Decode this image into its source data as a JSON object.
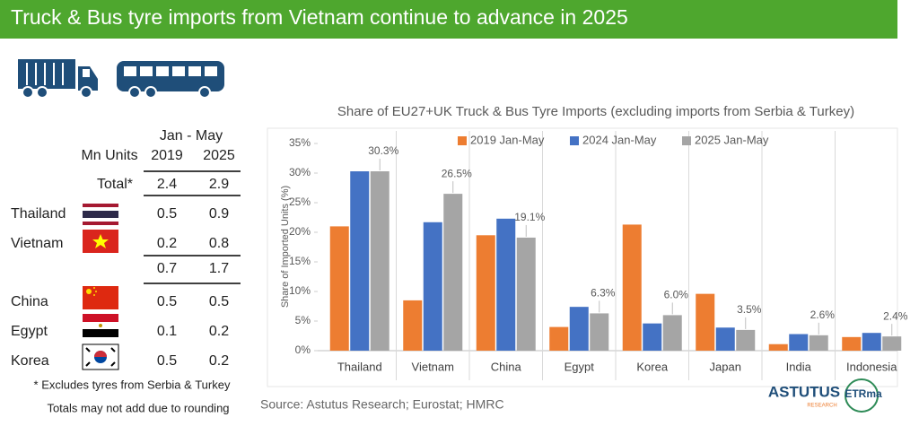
{
  "header": {
    "title": "Truck & Bus tyre imports from Vietnam continue to advance in 2025"
  },
  "table": {
    "header_group": "Jan - May",
    "columns": [
      "Mn Units",
      "2019",
      "2025"
    ],
    "rows": [
      [
        "Total*",
        2.4,
        2.9
      ],
      [
        "Thailand",
        0.5,
        0.9
      ],
      [
        "Vietnam",
        0.2,
        0.8
      ],
      [
        null,
        0.7,
        1.7
      ],
      [
        "China",
        0.5,
        0.5
      ],
      [
        "Egypt",
        0.1,
        0.2
      ],
      [
        "Korea",
        0.5,
        0.2
      ]
    ],
    "footnotes": [
      "* Excludes tyres from Serbia & Turkey",
      "Totals may not add due to rounding"
    ]
  },
  "chart_data": {
    "type": "bar",
    "title": "Share of EU27+UK Truck & Bus Tyre Imports (excluding imports from Serbia & Turkey)",
    "y_label": "Share of Imported Units (%)",
    "categories": [
      "Thailand",
      "Vietnam",
      "China",
      "Egypt",
      "Korea",
      "Japan",
      "India",
      "Indonesia"
    ],
    "series": [
      {
        "name": "2019 Jan-May",
        "color": "#ed7d31",
        "values": [
          21,
          8.5,
          19.5,
          4,
          21.3,
          9.6,
          1.1,
          2.3
        ]
      },
      {
        "name": "2024 Jan-May",
        "color": "#4472c4",
        "values": [
          30.3,
          21.7,
          22.3,
          7.4,
          4.6,
          3.9,
          2.8,
          3.0
        ]
      },
      {
        "name": "2025 Jan-May",
        "color": "#a5a5a5",
        "values": [
          30.3,
          26.5,
          19.1,
          6.3,
          6.0,
          3.5,
          2.6,
          2.4
        ],
        "value_labels": [
          "30.3%",
          "26.5%",
          "19.1%",
          "6.3%",
          "6.0%",
          "3.5%",
          "2.6%",
          "2.4%"
        ]
      }
    ],
    "ylim": [
      0,
      35
    ],
    "yticks": [
      {
        "value": 0,
        "label": "0%"
      },
      {
        "value": 5,
        "label": "5%"
      },
      {
        "value": 10,
        "label": "10%"
      },
      {
        "value": 15,
        "label": "15%"
      },
      {
        "value": 20,
        "label": "20%"
      },
      {
        "value": 25,
        "label": "25%"
      },
      {
        "value": 30,
        "label": "30%"
      },
      {
        "value": 35,
        "label": "35%"
      }
    ],
    "grid": false,
    "legend": "top"
  },
  "source": "Source: Astutus Research; Eurostat; HMRC",
  "logos": {
    "astutus": "ASTUTUS",
    "astutus_sub": "RESEARCH",
    "etrma": "ETRma"
  }
}
